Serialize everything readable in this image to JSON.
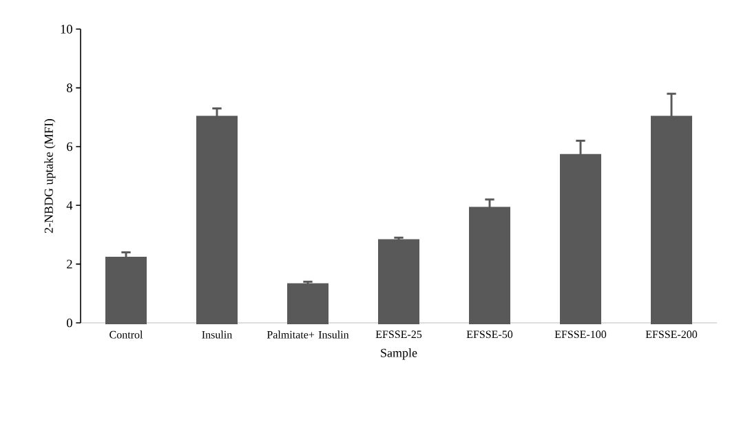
{
  "chart_data": {
    "type": "bar",
    "categories": [
      "Control",
      "Insulin",
      "Palmitate+ Insulin",
      "EFSSE-25",
      "EFSSE-50",
      "EFSSE-100",
      "EFSSE-200"
    ],
    "values": [
      2.2,
      7.0,
      1.3,
      2.8,
      3.9,
      5.7,
      7.0
    ],
    "errors": [
      0.2,
      0.3,
      0.1,
      0.1,
      0.3,
      0.5,
      0.8
    ],
    "color": "#595959",
    "xlabel": "Sample",
    "ylabel": "2-NBDG uptake (MFI)",
    "ylim": [
      0,
      10
    ],
    "yticks": [
      0,
      2,
      4,
      6,
      8,
      10
    ]
  }
}
